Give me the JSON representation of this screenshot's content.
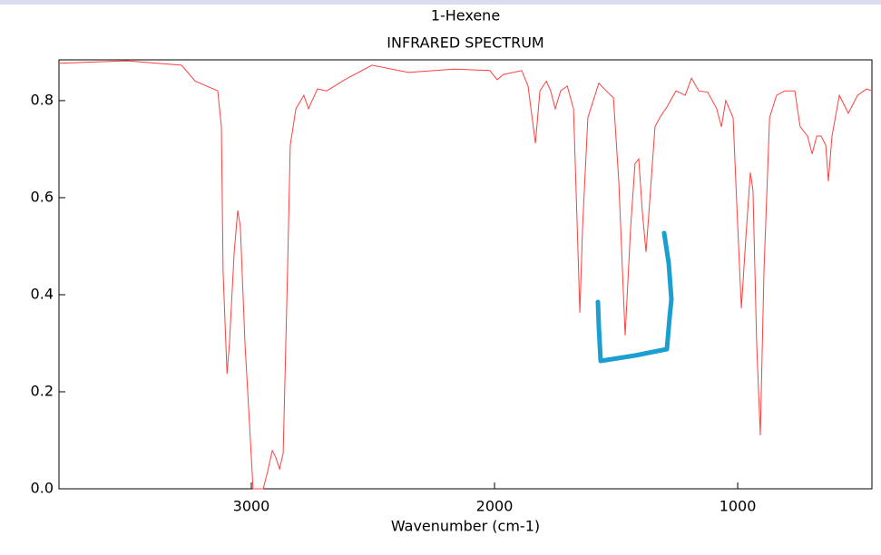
{
  "chart_data": {
    "type": "line",
    "title": "1-Hexene",
    "subtitle": "INFRARED SPECTRUM",
    "x_label": "Wavenumber (cm-1)",
    "xlim": [
      3791,
      448
    ],
    "xticks": [
      3000,
      2000,
      1000
    ],
    "ylim": [
      0,
      0.884
    ],
    "yticks": [
      {
        "value": 0,
        "label": "0.0"
      },
      0.2,
      0.4,
      0.6,
      0.8
    ],
    "series": [
      {
        "name": "1-Hexene",
        "color": "#ff4040",
        "x": [
          3791,
          3511,
          3287,
          3231,
          3138,
          3123,
          3116,
          3100,
          3090,
          3071,
          3056,
          3045,
          3026,
          3007,
          2993,
          2951,
          2933,
          2914,
          2899,
          2884,
          2869,
          2851,
          2840,
          2817,
          2784,
          2765,
          2750,
          2728,
          2690,
          2616,
          2504,
          2354,
          2168,
          2019,
          1989,
          1963,
          1888,
          1862,
          1832,
          1813,
          1787,
          1769,
          1750,
          1728,
          1701,
          1675,
          1660,
          1649,
          1638,
          1616,
          1571,
          1541,
          1511,
          1489,
          1463,
          1440,
          1422,
          1407,
          1392,
          1377,
          1362,
          1340,
          1317,
          1291,
          1254,
          1216,
          1190,
          1160,
          1123,
          1086,
          1067,
          1049,
          1019,
          1000,
          985,
          966,
          948,
          937,
          922,
          907,
          892,
          869,
          840,
          806,
          765,
          743,
          713,
          694,
          675,
          657,
          638,
          627,
          612,
          582,
          545,
          507,
          470,
          448
        ],
        "values": [
          0.877,
          0.882,
          0.873,
          0.84,
          0.82,
          0.746,
          0.447,
          0.237,
          0.3,
          0.484,
          0.574,
          0.54,
          0.3,
          0.13,
          0.0,
          0.0,
          0.036,
          0.079,
          0.064,
          0.041,
          0.073,
          0.447,
          0.708,
          0.783,
          0.811,
          0.783,
          0.8,
          0.824,
          0.82,
          0.843,
          0.873,
          0.858,
          0.865,
          0.862,
          0.843,
          0.854,
          0.862,
          0.83,
          0.712,
          0.82,
          0.84,
          0.82,
          0.783,
          0.82,
          0.83,
          0.783,
          0.54,
          0.363,
          0.54,
          0.765,
          0.836,
          0.82,
          0.806,
          0.634,
          0.316,
          0.54,
          0.67,
          0.68,
          0.57,
          0.488,
          0.59,
          0.746,
          0.768,
          0.787,
          0.82,
          0.811,
          0.846,
          0.82,
          0.817,
          0.783,
          0.746,
          0.8,
          0.765,
          0.54,
          0.372,
          0.522,
          0.652,
          0.615,
          0.297,
          0.11,
          0.447,
          0.765,
          0.811,
          0.82,
          0.82,
          0.746,
          0.727,
          0.69,
          0.727,
          0.727,
          0.708,
          0.634,
          0.727,
          0.811,
          0.774,
          0.811,
          0.824,
          0.82
        ]
      }
    ]
  }
}
